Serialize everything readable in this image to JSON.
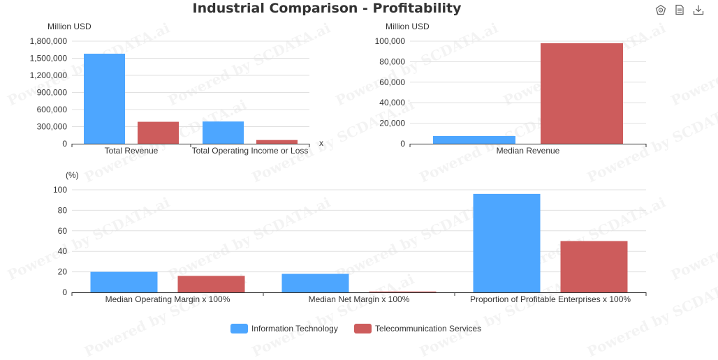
{
  "title": "Industrial Comparison - Profitability",
  "toolbox": {
    "icons": [
      "restore-icon",
      "data-view-icon",
      "save-image-icon"
    ]
  },
  "legend": [
    {
      "name": "Information Technology",
      "color": "#4da6ff"
    },
    {
      "name": "Telecommunication Services",
      "color": "#cd5c5c"
    }
  ],
  "watermark": "Powered by SCDATA.ai",
  "chart_data": [
    {
      "type": "bar",
      "ylabel": "Million USD",
      "xlabel": "x",
      "categories": [
        "Total Revenue",
        "Total Operating Income or Loss"
      ],
      "ylim": [
        0,
        1800000
      ],
      "yticks": [
        "0",
        "300,000",
        "600,000",
        "900,000",
        "1,200,000",
        "1,500,000",
        "1,800,000"
      ],
      "series": [
        {
          "name": "Information Technology",
          "values": [
            1580000,
            390000
          ]
        },
        {
          "name": "Telecommunication Services",
          "values": [
            385000,
            65000
          ]
        }
      ]
    },
    {
      "type": "bar",
      "ylabel": "Million USD",
      "categories": [
        "Median Revenue"
      ],
      "ylim": [
        0,
        100000
      ],
      "yticks": [
        "0",
        "20,000",
        "40,000",
        "60,000",
        "80,000",
        "100,000"
      ],
      "series": [
        {
          "name": "Information Technology",
          "values": [
            7500
          ]
        },
        {
          "name": "Telecommunication Services",
          "values": [
            98000
          ]
        }
      ]
    },
    {
      "type": "bar",
      "ylabel": "(%)",
      "categories": [
        "Median Operating Margin x 100%",
        "Median Net Margin x 100%",
        "Proportion of Profitable Enterprises x 100%"
      ],
      "ylim": [
        0,
        100
      ],
      "yticks": [
        "0",
        "20",
        "40",
        "60",
        "80",
        "100"
      ],
      "series": [
        {
          "name": "Information Technology",
          "values": [
            20,
            18,
            96
          ]
        },
        {
          "name": "Telecommunication Services",
          "values": [
            16,
            0.8,
            50
          ]
        }
      ]
    }
  ]
}
